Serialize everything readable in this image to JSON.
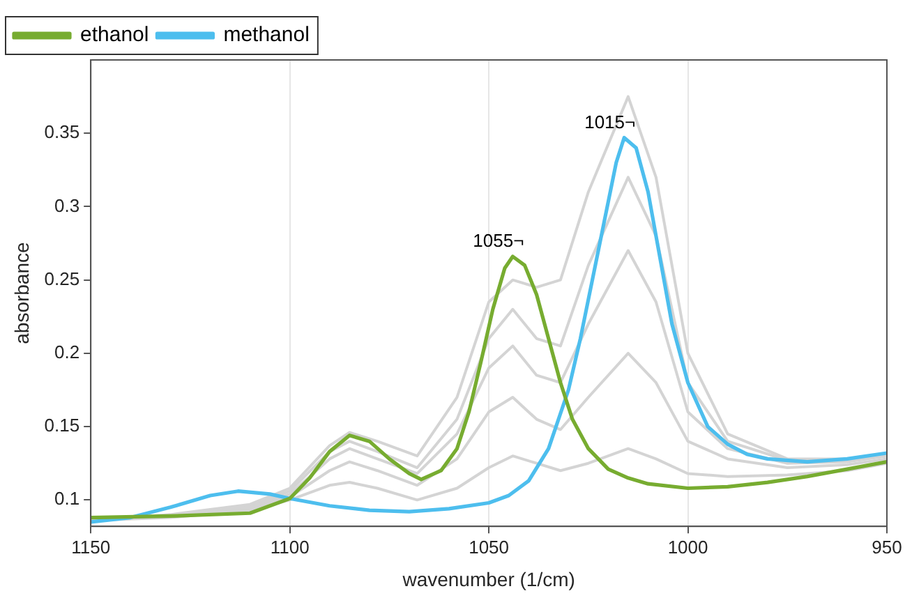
{
  "chart_data": {
    "type": "line",
    "xlabel": "wavenumber (1/cm)",
    "ylabel": "absorbance",
    "xlim": [
      1150,
      950
    ],
    "xticks": [
      1150,
      1100,
      1050,
      1000,
      950
    ],
    "ylim": [
      0.082,
      0.4
    ],
    "yticks": [
      0.1,
      0.15,
      0.2,
      0.25,
      0.3,
      0.35
    ],
    "grid": "x",
    "legend": "top left",
    "marker": "none",
    "line_style": "solid",
    "annotations": [
      {
        "text": "1055¬",
        "x": 1044,
        "y": 0.266
      },
      {
        "text": "1015¬",
        "x": 1016,
        "y": 0.347
      }
    ],
    "series": [
      {
        "name": "ethanol",
        "color": "#77ac30",
        "x": [
          1150,
          1130,
          1110,
          1100,
          1095,
          1090,
          1085,
          1080,
          1075,
          1070,
          1067,
          1062,
          1058,
          1055,
          1052,
          1049,
          1046,
          1044,
          1041,
          1038,
          1035,
          1032,
          1029,
          1025,
          1020,
          1015,
          1010,
          1000,
          990,
          980,
          970,
          960,
          950
        ],
        "values": [
          0.088,
          0.089,
          0.091,
          0.101,
          0.115,
          0.133,
          0.144,
          0.14,
          0.128,
          0.118,
          0.114,
          0.12,
          0.135,
          0.16,
          0.194,
          0.23,
          0.258,
          0.266,
          0.26,
          0.24,
          0.21,
          0.18,
          0.155,
          0.135,
          0.121,
          0.115,
          0.111,
          0.108,
          0.109,
          0.112,
          0.116,
          0.121,
          0.126
        ]
      },
      {
        "name": "methanol",
        "color": "#4dbeee",
        "x": [
          1150,
          1140,
          1130,
          1120,
          1113,
          1105,
          1100,
          1090,
          1080,
          1070,
          1060,
          1050,
          1045,
          1040,
          1035,
          1030,
          1027,
          1024,
          1021,
          1018,
          1016,
          1013,
          1010,
          1007,
          1004,
          1000,
          995,
          990,
          985,
          980,
          970,
          960,
          950
        ],
        "values": [
          0.085,
          0.088,
          0.095,
          0.103,
          0.106,
          0.104,
          0.101,
          0.096,
          0.093,
          0.092,
          0.094,
          0.098,
          0.103,
          0.113,
          0.135,
          0.175,
          0.21,
          0.25,
          0.29,
          0.33,
          0.347,
          0.34,
          0.31,
          0.265,
          0.22,
          0.18,
          0.15,
          0.138,
          0.131,
          0.128,
          0.126,
          0.128,
          0.132
        ]
      },
      {
        "color": "#d4d4d4",
        "x": [
          1150,
          1130,
          1110,
          1100,
          1090,
          1085,
          1078,
          1068,
          1058,
          1050,
          1044,
          1038,
          1032,
          1025,
          1015,
          1008,
          1000,
          990,
          975,
          960,
          950
        ],
        "values": [
          0.086,
          0.09,
          0.097,
          0.108,
          0.137,
          0.146,
          0.14,
          0.13,
          0.17,
          0.235,
          0.25,
          0.245,
          0.25,
          0.31,
          0.375,
          0.32,
          0.2,
          0.145,
          0.128,
          0.128,
          0.131
        ]
      },
      {
        "color": "#d4d4d4",
        "x": [
          1150,
          1130,
          1110,
          1100,
          1090,
          1085,
          1078,
          1068,
          1058,
          1050,
          1044,
          1038,
          1032,
          1025,
          1015,
          1008,
          1000,
          990,
          975,
          960,
          950
        ],
        "values": [
          0.086,
          0.089,
          0.096,
          0.106,
          0.133,
          0.14,
          0.133,
          0.122,
          0.155,
          0.21,
          0.23,
          0.21,
          0.205,
          0.26,
          0.32,
          0.28,
          0.18,
          0.14,
          0.127,
          0.127,
          0.13
        ]
      },
      {
        "color": "#d4d4d4",
        "x": [
          1150,
          1130,
          1110,
          1100,
          1090,
          1085,
          1078,
          1068,
          1058,
          1050,
          1044,
          1038,
          1032,
          1025,
          1015,
          1008,
          1000,
          990,
          975,
          960,
          950
        ],
        "values": [
          0.086,
          0.089,
          0.095,
          0.104,
          0.128,
          0.135,
          0.128,
          0.118,
          0.145,
          0.19,
          0.205,
          0.185,
          0.18,
          0.22,
          0.27,
          0.235,
          0.16,
          0.135,
          0.125,
          0.126,
          0.13
        ]
      },
      {
        "color": "#d4d4d4",
        "x": [
          1150,
          1130,
          1110,
          1100,
          1090,
          1085,
          1078,
          1068,
          1058,
          1050,
          1044,
          1038,
          1032,
          1025,
          1015,
          1008,
          1000,
          990,
          975,
          960,
          950
        ],
        "values": [
          0.086,
          0.089,
          0.094,
          0.102,
          0.12,
          0.126,
          0.12,
          0.11,
          0.128,
          0.16,
          0.17,
          0.155,
          0.148,
          0.17,
          0.2,
          0.18,
          0.14,
          0.128,
          0.122,
          0.124,
          0.128
        ]
      },
      {
        "color": "#d4d4d4",
        "x": [
          1150,
          1130,
          1110,
          1100,
          1090,
          1085,
          1078,
          1068,
          1058,
          1050,
          1044,
          1038,
          1032,
          1025,
          1015,
          1008,
          1000,
          990,
          975,
          960,
          950
        ],
        "values": [
          0.086,
          0.088,
          0.093,
          0.1,
          0.11,
          0.112,
          0.108,
          0.1,
          0.108,
          0.122,
          0.13,
          0.125,
          0.12,
          0.125,
          0.135,
          0.128,
          0.118,
          0.116,
          0.117,
          0.12,
          0.125
        ]
      }
    ]
  }
}
